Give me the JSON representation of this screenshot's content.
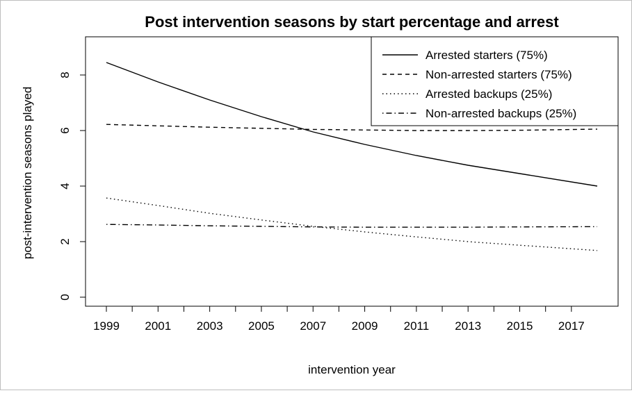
{
  "chart_data": {
    "type": "line",
    "title": "Post intervention seasons by start percentage and arrest",
    "xlabel": "intervention year",
    "ylabel": "post-intervention seasons played",
    "xlim": [
      1999,
      2018
    ],
    "ylim": [
      0,
      9
    ],
    "x_ticks": [
      1999,
      2001,
      2003,
      2005,
      2007,
      2009,
      2011,
      2013,
      2015,
      2017
    ],
    "y_ticks": [
      0,
      2,
      4,
      6,
      8
    ],
    "grid": false,
    "legend_position": "top-right",
    "series": [
      {
        "name": "Arrested starters (75%)",
        "line_style": "solid",
        "color": "#000000",
        "x": [
          1999,
          2001,
          2003,
          2005,
          2007,
          2009,
          2011,
          2013,
          2015,
          2018
        ],
        "y": [
          8.45,
          7.75,
          7.1,
          6.5,
          5.95,
          5.5,
          5.1,
          4.75,
          4.45,
          4.0
        ]
      },
      {
        "name": "Non-arrested starters (75%)",
        "line_style": "dashed",
        "color": "#000000",
        "x": [
          1999,
          2001,
          2003,
          2005,
          2007,
          2009,
          2011,
          2013,
          2015,
          2018
        ],
        "y": [
          6.22,
          6.17,
          6.12,
          6.08,
          6.04,
          6.02,
          6.0,
          6.0,
          6.01,
          6.05
        ]
      },
      {
        "name": "Arrested backups (25%)",
        "line_style": "dotted",
        "color": "#000000",
        "x": [
          1999,
          2001,
          2003,
          2005,
          2007,
          2009,
          2011,
          2013,
          2015,
          2018
        ],
        "y": [
          3.57,
          3.3,
          3.02,
          2.78,
          2.55,
          2.35,
          2.17,
          2.0,
          1.87,
          1.68
        ]
      },
      {
        "name": "Non-arrested backups (25%)",
        "line_style": "dotdash",
        "color": "#000000",
        "x": [
          1999,
          2001,
          2003,
          2005,
          2007,
          2009,
          2011,
          2013,
          2015,
          2018
        ],
        "y": [
          2.62,
          2.6,
          2.57,
          2.55,
          2.53,
          2.52,
          2.52,
          2.52,
          2.53,
          2.54
        ]
      }
    ]
  }
}
